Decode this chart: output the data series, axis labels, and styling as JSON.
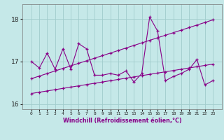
{
  "xlabel": "Windchill (Refroidissement éolien,°C)",
  "bg_color": "#c5e8e8",
  "line_color": "#880088",
  "grid_color": "#a0cccc",
  "x": [
    0,
    1,
    2,
    3,
    4,
    5,
    6,
    7,
    8,
    9,
    10,
    11,
    12,
    13,
    14,
    15,
    16,
    17,
    18,
    19,
    20,
    21,
    22,
    23
  ],
  "y_main": [
    17.0,
    16.85,
    17.2,
    16.82,
    17.3,
    16.82,
    17.42,
    17.3,
    16.68,
    16.68,
    16.72,
    16.68,
    16.78,
    16.52,
    16.72,
    18.05,
    17.72,
    16.55,
    16.65,
    16.72,
    16.82,
    17.05,
    16.45,
    16.55
  ],
  "y_reg_low": [
    16.25,
    16.28,
    16.31,
    16.34,
    16.37,
    16.4,
    16.43,
    16.46,
    16.49,
    16.52,
    16.55,
    16.58,
    16.61,
    16.64,
    16.67,
    16.7,
    16.73,
    16.76,
    16.79,
    16.82,
    16.85,
    16.88,
    16.91,
    16.94
  ],
  "y_reg_high": [
    16.6,
    16.66,
    16.72,
    16.78,
    16.84,
    16.9,
    16.96,
    17.02,
    17.08,
    17.14,
    17.2,
    17.26,
    17.32,
    17.38,
    17.44,
    17.5,
    17.56,
    17.62,
    17.68,
    17.74,
    17.8,
    17.86,
    17.92,
    17.98
  ],
  "ylim": [
    15.88,
    18.35
  ],
  "yticks": [
    16,
    17,
    18
  ],
  "xticks": [
    0,
    1,
    2,
    3,
    4,
    5,
    6,
    7,
    8,
    9,
    10,
    11,
    12,
    13,
    14,
    15,
    16,
    17,
    18,
    19,
    20,
    21,
    22,
    23
  ]
}
